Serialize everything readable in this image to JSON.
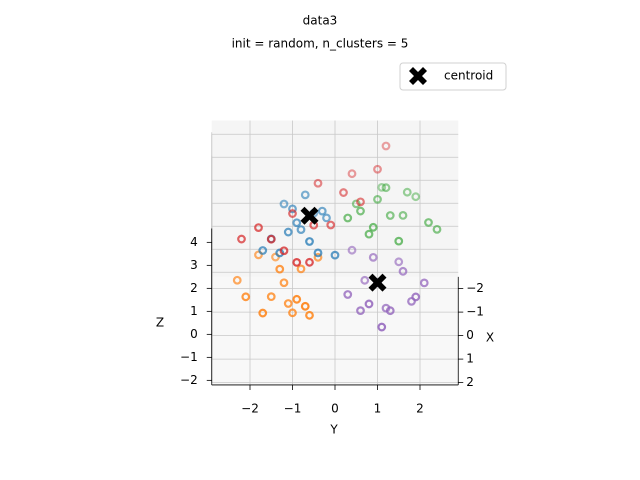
{
  "chart_data": {
    "type": "scatter3d",
    "title": "data3",
    "subtitle": "init = random, n_clusters = 5",
    "xlabel": "X",
    "ylabel": "Y",
    "zlabel": "Z",
    "xlim": [
      -2.5,
      2.1
    ],
    "ylim": [
      -2.9,
      2.9
    ],
    "zlim": [
      -2.2,
      4.6
    ],
    "xticks": [
      {
        "value": -2,
        "label": "−2"
      },
      {
        "value": -1,
        "label": "−1"
      },
      0,
      1,
      2
    ],
    "yticks": [
      {
        "value": -2,
        "label": "−2"
      },
      {
        "value": -1,
        "label": "−1"
      },
      0,
      1,
      2
    ],
    "zticks": [
      {
        "value": -2,
        "label": "−2"
      },
      {
        "value": -1,
        "label": "−1"
      },
      0,
      1,
      2,
      3,
      4
    ],
    "grid": true,
    "legend": "upper right",
    "series": [
      {
        "color": "#ff7f0e",
        "x": [
          0.1,
          0.8,
          -0.5,
          0.3,
          1.0,
          -0.2,
          0.6,
          0.4,
          -0.7,
          0.9,
          0.0,
          0.5,
          -0.3,
          1.2,
          0.2
        ],
        "y": [
          -1.2,
          -0.6,
          -1.8,
          -1.5,
          -0.9,
          -0.4,
          -2.1,
          -1.0,
          -1.4,
          -1.7,
          -0.8,
          -1.3,
          -2.3,
          -0.7,
          -1.1
        ],
        "z": [
          0.2,
          -0.5,
          0.8,
          -0.2,
          0.4,
          1.0,
          0.1,
          -0.8,
          0.5,
          -0.3,
          0.7,
          1.2,
          -0.1,
          0.3,
          -0.6
        ]
      },
      {
        "color": "#9467bd",
        "x": [
          0.0,
          0.7,
          -0.4,
          0.5,
          1.1,
          -0.6,
          0.3,
          0.9,
          -0.2,
          0.4,
          0.8,
          -0.1,
          0.6,
          1.3,
          0.2
        ],
        "y": [
          1.0,
          0.6,
          1.5,
          1.8,
          0.8,
          0.4,
          1.2,
          1.9,
          0.7,
          2.1,
          1.3,
          0.9,
          0.3,
          1.1,
          1.6
        ],
        "z": [
          0.1,
          -0.4,
          0.6,
          -0.2,
          0.3,
          0.9,
          -0.7,
          0.4,
          0.0,
          0.5,
          -0.3,
          1.1,
          0.2,
          -0.5,
          0.8
        ]
      },
      {
        "color": "#1f77b4",
        "x": [
          -0.4,
          0.2,
          -1.0,
          -0.2,
          0.4,
          -0.8,
          -0.5,
          0.0,
          -1.2,
          -0.3,
          0.3,
          -0.6,
          -0.1,
          -0.9,
          0.1
        ],
        "y": [
          -0.8,
          -0.4,
          -1.2,
          -1.5,
          -0.6,
          -0.2,
          -1.0,
          -1.7,
          -0.5,
          -0.9,
          -1.3,
          -0.3,
          -1.1,
          -0.7,
          0.0
        ],
        "z": [
          2.0,
          1.6,
          2.5,
          1.8,
          2.3,
          2.1,
          2.8,
          1.5,
          1.9,
          2.4,
          1.7,
          2.6,
          2.2,
          3.0,
          1.4
        ]
      },
      {
        "color": "#2ca02c",
        "x": [
          -1.0,
          -0.5,
          -1.6,
          -0.8,
          -1.3,
          -0.3,
          -1.1,
          -1.8,
          -0.6,
          -0.9,
          -1.4,
          -0.4,
          -1.2,
          -0.7,
          -2.0
        ],
        "y": [
          1.3,
          0.8,
          1.7,
          2.2,
          0.5,
          1.5,
          1.0,
          1.9,
          0.3,
          2.4,
          1.2,
          0.9,
          1.6,
          0.6,
          1.1
        ],
        "z": [
          2.0,
          1.7,
          2.4,
          1.9,
          2.2,
          1.6,
          2.6,
          2.0,
          2.3,
          1.5,
          2.8,
          2.1,
          1.8,
          2.5,
          2.2
        ]
      },
      {
        "color": "#d62728",
        "x": [
          -0.1,
          0.5,
          -0.9,
          0.2,
          -1.5,
          0.8,
          -0.4,
          -2.0,
          0.4,
          -0.7,
          0.1,
          -1.1,
          0.6,
          -0.3,
          -1.8
        ],
        "y": [
          -0.5,
          -1.2,
          0.2,
          -1.8,
          1.0,
          -0.9,
          -0.1,
          1.2,
          -1.5,
          0.6,
          -2.2,
          -0.4,
          -0.6,
          -1.0,
          0.4
        ],
        "z": [
          2.5,
          2.0,
          3.1,
          2.7,
          3.5,
          1.8,
          2.2,
          4.0,
          2.4,
          2.9,
          2.1,
          3.3,
          1.6,
          2.8,
          3.0
        ]
      },
      {
        "name": "centroid",
        "color": "#000000",
        "marker": "X",
        "x": [
          -0.5,
          -0.1
        ],
        "y": [
          -0.6,
          1.0
        ],
        "z": [
          2.5,
          0.0
        ]
      }
    ]
  }
}
